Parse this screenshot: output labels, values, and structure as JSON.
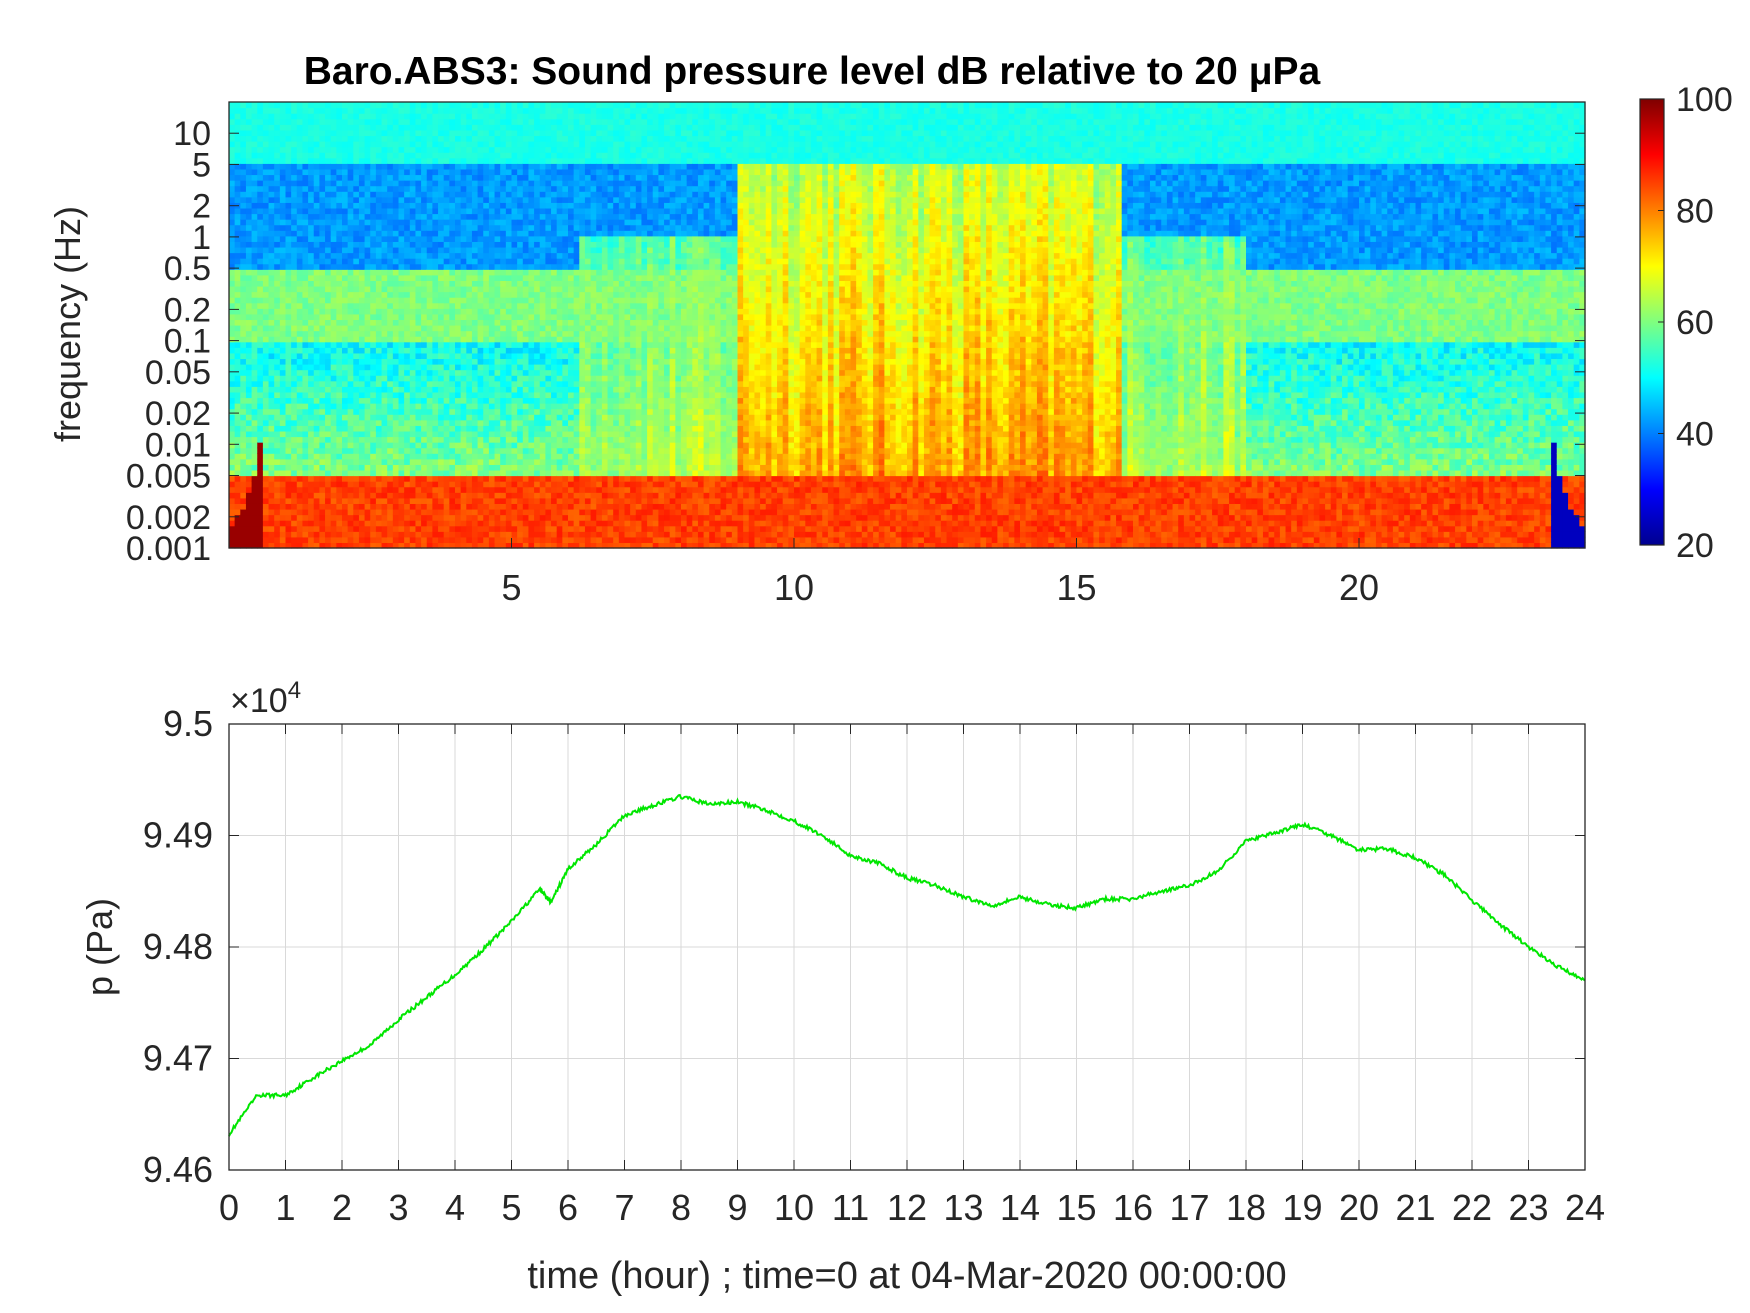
{
  "chart_data": [
    {
      "type": "heatmap",
      "title": "Baro.ABS3: Sound pressure level dB relative to 20 μPa",
      "ylabel": "frequency (Hz)",
      "xlabel": "",
      "xlim": [
        0,
        24
      ],
      "x_ticks": [
        "5",
        "10",
        "15",
        "20"
      ],
      "ylim": [
        0.001,
        20
      ],
      "y_scale": "log",
      "y_ticks": [
        "0.001",
        "0.002",
        "0.005",
        "0.01",
        "0.02",
        "0.05",
        "0.1",
        "0.2",
        "0.5",
        "1",
        "2",
        "5",
        "10"
      ],
      "colorbar": {
        "colormap": "jet",
        "range": [
          20,
          100
        ],
        "ticks": [
          "20",
          "40",
          "60",
          "80",
          "100"
        ]
      },
      "levels_dB": {
        "band_above_5Hz": 52,
        "band_0.5_to_5Hz_quiet": 42,
        "band_0.1_to_0.5Hz": 60,
        "band_0.005_to_0.1Hz_quiet": 48,
        "band_below_0.005Hz": 85,
        "active_hours_9_to_16": 75
      }
    },
    {
      "type": "line",
      "xlabel": "time (hour) ; time=0 at 04-Mar-2020 00:00:00",
      "ylabel": "p (Pa)",
      "y_multiplier": "×10^4",
      "xlim": [
        0,
        24
      ],
      "ylim": [
        9.46,
        9.5
      ],
      "x_ticks": [
        "0",
        "1",
        "2",
        "3",
        "4",
        "5",
        "6",
        "7",
        "8",
        "9",
        "10",
        "11",
        "12",
        "13",
        "14",
        "15",
        "16",
        "17",
        "18",
        "19",
        "20",
        "21",
        "22",
        "23",
        "24"
      ],
      "y_ticks": [
        "9.46",
        "9.47",
        "9.48",
        "9.49",
        "9.5"
      ],
      "grid": true,
      "series_color": "#00e600",
      "x": [
        0,
        0.5,
        1,
        1.5,
        2,
        2.5,
        3,
        3.5,
        4,
        4.5,
        5,
        5.5,
        5.7,
        6,
        6.5,
        7,
        7.5,
        8,
        8.5,
        9,
        9.5,
        10,
        10.5,
        11,
        11.5,
        12,
        12.5,
        13,
        13.5,
        14,
        14.5,
        15,
        15.5,
        16,
        16.5,
        17,
        17.5,
        18,
        18.5,
        19,
        19.5,
        20,
        20.5,
        21,
        21.5,
        22,
        22.5,
        23,
        23.5,
        24
      ],
      "y": [
        9.4632,
        9.4667,
        9.4667,
        9.4683,
        9.4698,
        9.4712,
        9.4735,
        9.4755,
        9.4775,
        9.4798,
        9.4823,
        9.4852,
        9.484,
        9.487,
        9.4892,
        9.4918,
        9.4927,
        9.4935,
        9.4928,
        9.493,
        9.4923,
        9.4913,
        9.49,
        9.4882,
        9.4875,
        9.4862,
        9.4855,
        9.4845,
        9.4837,
        9.4845,
        9.4838,
        9.4835,
        9.4843,
        9.4843,
        9.485,
        9.4855,
        9.4868,
        9.4895,
        9.4902,
        9.491,
        9.49,
        9.4887,
        9.4888,
        9.488,
        9.4865,
        9.4842,
        9.482,
        9.48,
        9.4783,
        9.477
      ]
    }
  ]
}
